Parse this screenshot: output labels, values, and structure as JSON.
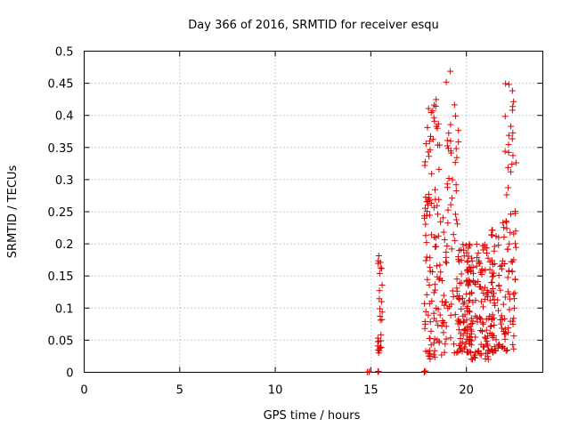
{
  "chart_data": {
    "type": "scatter",
    "title": "Day 366 of 2016, SRMTID for receiver esqu",
    "xlabel": "GPS time / hours",
    "ylabel": "SRMTID / TECUs",
    "xlim": [
      0,
      24
    ],
    "ylim": [
      0,
      0.5
    ],
    "xticks": [
      0,
      5,
      10,
      15,
      20
    ],
    "yticks": [
      0,
      0.05,
      0.1,
      0.15,
      0.2,
      0.25,
      0.3,
      0.35,
      0.4,
      0.45,
      0.5
    ],
    "ytick_labels": [
      "0",
      "0.05",
      "0.1",
      "0.15",
      "0.2",
      "0.25",
      "0.3",
      "0.35",
      "0.4",
      "0.45",
      "0.5"
    ],
    "grid": true,
    "marker": "plus",
    "color": "#dd0000",
    "series": [
      {
        "name": "SRMTID",
        "clusters": [
          {
            "x_range": [
              14.8,
              14.95
            ],
            "y_range": [
              0,
              0.002
            ],
            "n": 3
          },
          {
            "x_range": [
              15.3,
              15.42
            ],
            "y_range": [
              0,
              0.002
            ],
            "n": 3
          },
          {
            "x_range": [
              17.75,
              17.9
            ],
            "y_range": [
              0,
              0.002
            ],
            "n": 4
          },
          {
            "x_range": [
              15.35,
              15.55
            ],
            "y_range": [
              0.03,
              0.06
            ],
            "n": 12
          },
          {
            "x_range": [
              15.35,
              15.6
            ],
            "y_range": [
              0.08,
              0.19
            ],
            "n": 16
          },
          {
            "x_range": [
              17.8,
              18.6
            ],
            "y_range": [
              0.25,
              0.43
            ],
            "n": 40
          },
          {
            "x_range": [
              17.8,
              19.0
            ],
            "y_range": [
              0.02,
              0.25
            ],
            "n": 90
          },
          {
            "x_range": [
              18.9,
              19.6
            ],
            "y_range": [
              0.03,
              0.49
            ],
            "n": 50
          },
          {
            "x_range": [
              19.5,
              20.3
            ],
            "y_range": [
              0.03,
              0.2
            ],
            "n": 80
          },
          {
            "x_range": [
              20.0,
              21.5
            ],
            "y_range": [
              0.02,
              0.2
            ],
            "n": 140
          },
          {
            "x_range": [
              21.3,
              22.0
            ],
            "y_range": [
              0.03,
              0.25
            ],
            "n": 50
          },
          {
            "x_range": [
              22.0,
              22.6
            ],
            "y_range": [
              0.03,
              0.45
            ],
            "n": 70
          }
        ]
      }
    ]
  }
}
